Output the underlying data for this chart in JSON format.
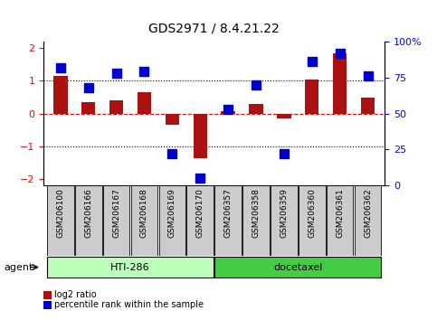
{
  "title": "GDS2971 / 8.4.21.22",
  "samples": [
    "GSM206100",
    "GSM206166",
    "GSM206167",
    "GSM206168",
    "GSM206169",
    "GSM206170",
    "GSM206357",
    "GSM206358",
    "GSM206359",
    "GSM206360",
    "GSM206361",
    "GSM206362"
  ],
  "log2_ratio": [
    1.15,
    0.35,
    0.4,
    0.65,
    -0.35,
    -1.35,
    0.07,
    0.3,
    -0.15,
    1.05,
    1.85,
    0.5
  ],
  "percentile_rank": [
    82,
    68,
    78,
    79,
    22,
    5,
    53,
    70,
    22,
    86,
    92,
    76
  ],
  "agents": [
    {
      "label": "HTI-286",
      "start": 0,
      "end": 5,
      "color": "#aaffaa"
    },
    {
      "label": "docetaxel",
      "start": 6,
      "end": 11,
      "color": "#44dd44"
    }
  ],
  "agent_label": "agent",
  "ylim": [
    -2.2,
    2.2
  ],
  "yticks_left": [
    -2,
    -1,
    0,
    1,
    2
  ],
  "yticks_right_vals": [
    0,
    25,
    50,
    75,
    100
  ],
  "yticklabels_right": [
    "0",
    "25",
    "50",
    "75",
    "100%"
  ],
  "bar_color": "#aa1111",
  "dot_color": "#0000cc",
  "legend_items": [
    {
      "label": "log2 ratio",
      "color": "#aa1111"
    },
    {
      "label": "percentile rank within the sample",
      "color": "#0000cc"
    }
  ],
  "bar_width": 0.5,
  "dot_size": 45,
  "figsize": [
    4.83,
    3.54
  ],
  "dpi": 100
}
